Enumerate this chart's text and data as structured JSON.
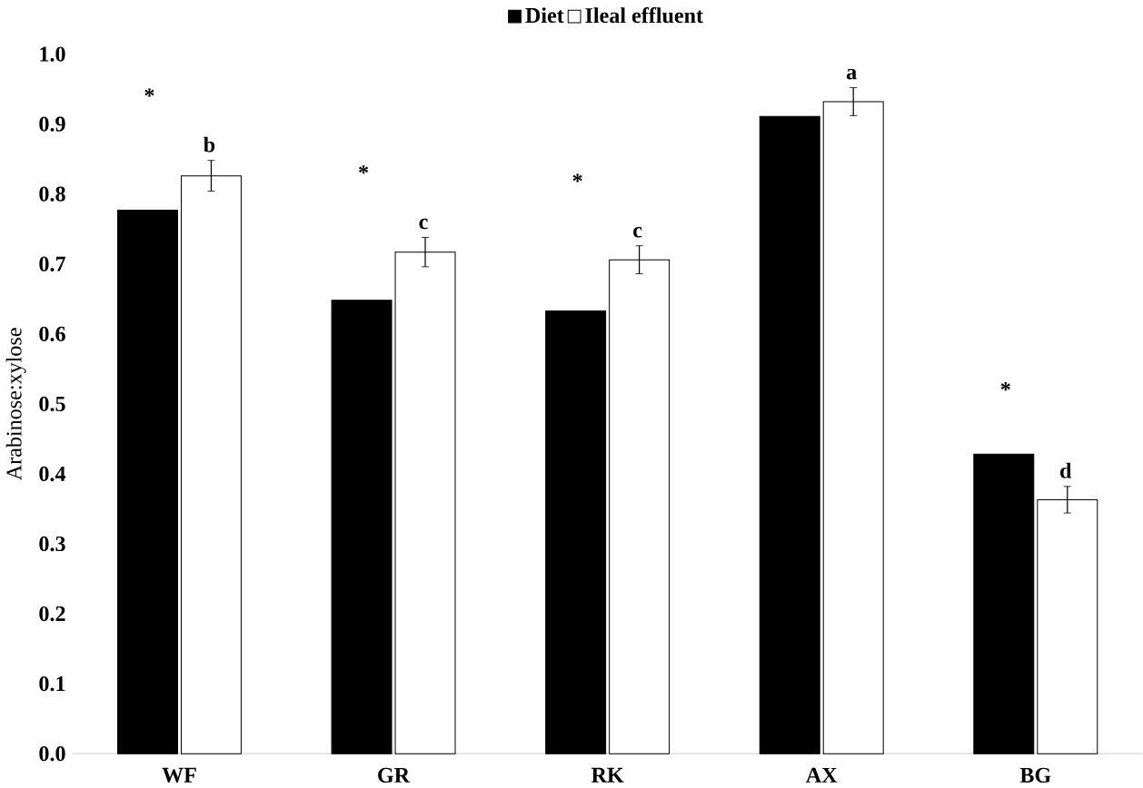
{
  "chart_data": {
    "type": "bar",
    "ylabel": "Arabinose:xylose",
    "categories": [
      "WF",
      "GR",
      "RK",
      "AX",
      "BG"
    ],
    "series": [
      {
        "name": "Diet",
        "color": "#000000",
        "values": [
          0.777,
          0.648,
          0.633,
          0.911,
          0.428
        ]
      },
      {
        "name": "Ileal effluent",
        "color": "#ffffff",
        "values": [
          0.826,
          0.717,
          0.706,
          0.932,
          0.363
        ],
        "errors": [
          0.022,
          0.021,
          0.02,
          0.02,
          0.019
        ]
      }
    ],
    "annotations": [
      "*",
      "*",
      "*",
      "*",
      {
        "text": "b",
        "x": "WF",
        "y": 0.826
      },
      {
        "text": "c",
        "x": "GR",
        "y": 0.717
      },
      {
        "text": "c",
        "x": "RK",
        "y": 0.706
      },
      {
        "text": "a",
        "x": "AX",
        "y": 0.932
      },
      {
        "text": "d",
        "x": "BG",
        "y": 0.363
      }
    ],
    "ylim": [
      0,
      1.0
    ],
    "yticks": [
      {
        "value": 0,
        "label": "0.0"
      },
      0.1,
      0.2,
      0.3,
      0.4,
      0.5,
      0.6,
      0.7,
      0.8,
      0.9,
      {
        "value": 1.0,
        "label": "1.0"
      }
    ],
    "legend": "top",
    "grid": false
  }
}
